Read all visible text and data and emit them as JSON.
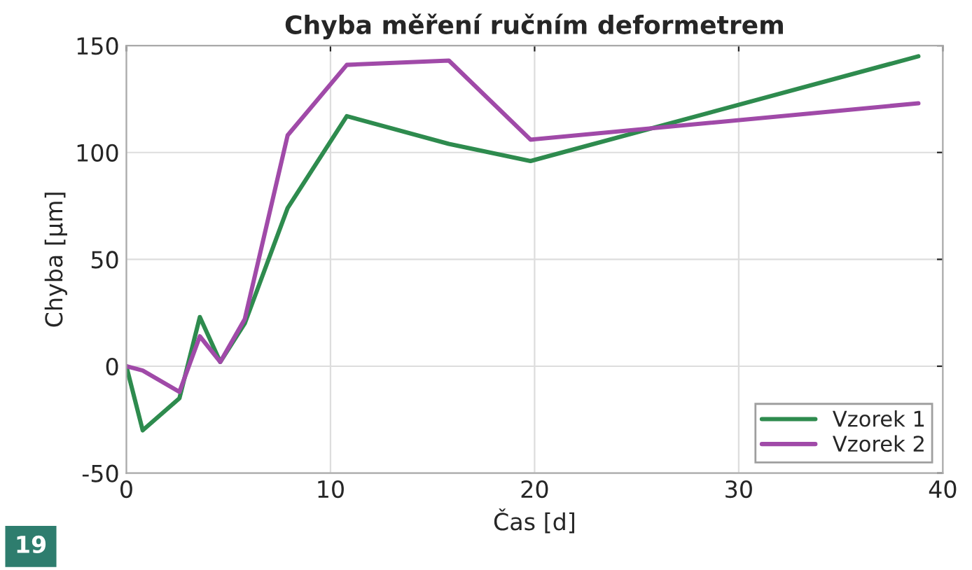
{
  "chart_data": {
    "type": "line",
    "title": "Chyba měření ručním deformetrem",
    "xlabel": "Čas [d]",
    "ylabel": "Chyba [μm]",
    "annotations": [
      "19"
    ],
    "xlim": [
      0,
      40
    ],
    "xticks": [
      0,
      10,
      20,
      30,
      40
    ],
    "ylim": [
      -50,
      150
    ],
    "yticks": [
      -50,
      0,
      50,
      100,
      150
    ],
    "grid": true,
    "legend": "bottom right",
    "line_style": "solid",
    "series": [
      {
        "name": "Vzorek 1",
        "color": "#2e8b4e",
        "x": [
          0,
          0.8,
          2.6,
          3.6,
          4.6,
          5.8,
          7.9,
          10.8,
          15.8,
          19.8,
          38.8
        ],
        "values": [
          0,
          -30,
          -15,
          23,
          2,
          20,
          74,
          117,
          104,
          96,
          145
        ]
      },
      {
        "name": "Vzorek 2",
        "color": "#a04aa8",
        "x": [
          0,
          0.8,
          2.6,
          3.6,
          4.6,
          5.8,
          7.9,
          10.8,
          15.8,
          19.8,
          38.8
        ],
        "values": [
          0,
          -2,
          -12,
          14,
          2,
          22,
          108,
          141,
          143,
          106,
          123
        ]
      }
    ]
  }
}
